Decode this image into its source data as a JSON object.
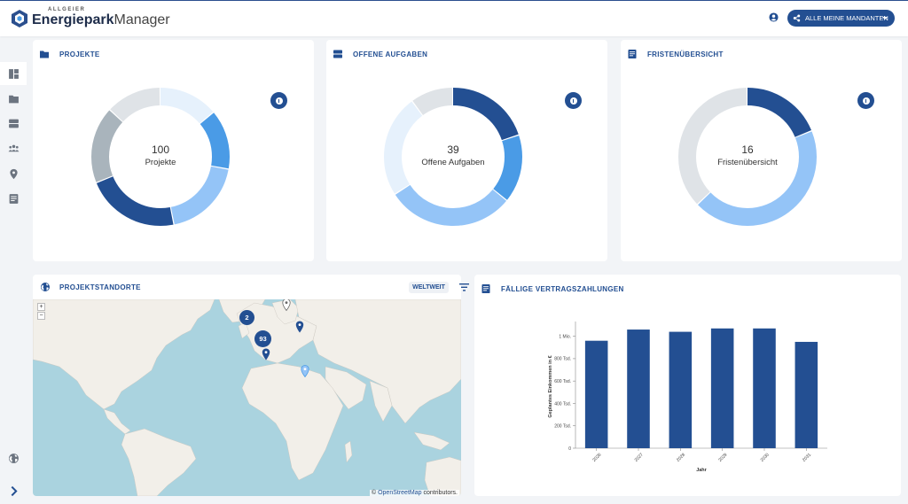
{
  "header": {
    "logo_small": "ALLGEIER",
    "logo_bold": "Energiepark",
    "logo_regular": "Manager",
    "mandant_label": "ALLE MEINE MANDANTEN"
  },
  "colors": {
    "primary": "#234f92",
    "accent": "#4a9be6",
    "light_blue": "#94c4f7",
    "pale_blue": "#e6f1fc",
    "grey": "#dfe3e7",
    "mid_grey": "#a9b4bc"
  },
  "sidebar": {
    "items": [
      {
        "icon": "dashboard-icon"
      },
      {
        "icon": "folder-icon"
      },
      {
        "icon": "storage-icon"
      },
      {
        "icon": "users-icon"
      },
      {
        "icon": "location-pin-icon"
      },
      {
        "icon": "document-icon"
      }
    ],
    "bottom": [
      {
        "icon": "globe-icon"
      },
      {
        "icon": "chevron-right-icon"
      }
    ]
  },
  "cards": {
    "projekte": {
      "title": "PROJEKTE",
      "total": "100",
      "label": "Projekte",
      "segments": [
        {
          "value": 14,
          "color": "#e6f1fc"
        },
        {
          "value": 14,
          "color": "#4a9be6"
        },
        {
          "value": 19,
          "color": "#94c4f7"
        },
        {
          "value": 22,
          "color": "#234f92"
        },
        {
          "value": 18,
          "color": "#a9b4bc"
        },
        {
          "value": 13,
          "color": "#dfe3e7"
        }
      ]
    },
    "aufgaben": {
      "title": "OFFENE AUFGABEN",
      "total": "39",
      "label": "Offene Aufgaben",
      "segments": [
        {
          "value": 20,
          "color": "#234f92"
        },
        {
          "value": 16,
          "color": "#4a9be6"
        },
        {
          "value": 30,
          "color": "#94c4f7"
        },
        {
          "value": 24,
          "color": "#e6f1fc"
        },
        {
          "value": 10,
          "color": "#dfe3e7"
        }
      ]
    },
    "fristen": {
      "title": "FRISTENÜBERSICHT",
      "total": "16",
      "label": "Fristenübersicht",
      "segments": [
        {
          "value": 19,
          "color": "#234f92"
        },
        {
          "value": 44,
          "color": "#94c4f7"
        },
        {
          "value": 37,
          "color": "#dfe3e7"
        }
      ]
    }
  },
  "map_card": {
    "title": "PROJEKTSTANDORTE",
    "scope_button": "WELTWEIT",
    "zoom_in": "+",
    "zoom_out": "−",
    "attribution_prefix": "©",
    "attribution_link": "OpenStreetMap",
    "attribution_suffix": "contributors.",
    "clusters": [
      {
        "count": "2"
      },
      {
        "count": "93"
      }
    ]
  },
  "payments_card": {
    "title": "FÄLLIGE VERTRAGSZAHLUNGEN"
  },
  "chart_data": {
    "type": "bar",
    "title": "",
    "xlabel": "Jahr",
    "ylabel": "Geplantes Einkommen in €",
    "categories": [
      "2026",
      "2027",
      "2028",
      "2029",
      "2030",
      "2031"
    ],
    "values": [
      960000,
      1060000,
      1040000,
      1070000,
      1070000,
      950000
    ],
    "ylim": [
      0,
      1000000
    ],
    "yticks": [
      {
        "value": 0,
        "label": "0"
      },
      {
        "value": 200000,
        "label": "200 Tsd."
      },
      {
        "value": 400000,
        "label": "400 Tsd."
      },
      {
        "value": 600000,
        "label": "600 Tsd."
      },
      {
        "value": 800000,
        "label": "800 Tsd."
      },
      {
        "value": 1000000,
        "label": "1 Mio."
      }
    ],
    "ymax": 1100000,
    "color": "#234f92",
    "grid": false
  }
}
